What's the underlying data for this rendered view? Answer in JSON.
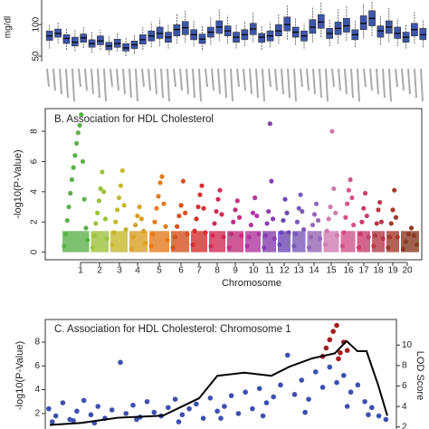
{
  "chart_data": [
    {
      "type": "box",
      "y_label": "mg/dl",
      "color": "#3f56a8",
      "ylim": [
        41.4,
        139
      ],
      "yticks": [
        50,
        100
      ],
      "boxes": [
        [
          62,
          75,
          82,
          90,
          100
        ],
        [
          70,
          80,
          86,
          93,
          104
        ],
        [
          60,
          70,
          78,
          84,
          95
        ],
        [
          58,
          66,
          72,
          80,
          92
        ],
        [
          63,
          72,
          79,
          85,
          96
        ],
        [
          55,
          64,
          70,
          76,
          88
        ],
        [
          60,
          68,
          74,
          82,
          92
        ],
        [
          52,
          60,
          66,
          72,
          83
        ],
        [
          57,
          64,
          70,
          77,
          88
        ],
        [
          50,
          58,
          63,
          70,
          80
        ],
        [
          54,
          62,
          68,
          74,
          85
        ],
        [
          60,
          69,
          76,
          84,
          96
        ],
        [
          64,
          74,
          82,
          90,
          104
        ],
        [
          66,
          78,
          86,
          96,
          110
        ],
        [
          62,
          72,
          80,
          88,
          100
        ],
        [
          70,
          82,
          92,
          100,
          118
        ],
        [
          72,
          84,
          95,
          105,
          122
        ],
        [
          65,
          76,
          84,
          92,
          106
        ],
        [
          60,
          70,
          77,
          85,
          98
        ],
        [
          68,
          80,
          88,
          96,
          112
        ],
        [
          74,
          86,
          96,
          106,
          124
        ],
        [
          70,
          82,
          90,
          98,
          114
        ],
        [
          62,
          72,
          80,
          88,
          100
        ],
        [
          66,
          76,
          84,
          92,
          106
        ],
        [
          72,
          84,
          93,
          102,
          120
        ],
        [
          60,
          72,
          80,
          86,
          98
        ],
        [
          64,
          74,
          82,
          90,
          104
        ],
        [
          70,
          82,
          90,
          100,
          116
        ],
        [
          76,
          90,
          100,
          112,
          132
        ],
        [
          68,
          80,
          88,
          96,
          110
        ],
        [
          62,
          74,
          82,
          90,
          102
        ],
        [
          72,
          86,
          96,
          108,
          128
        ],
        [
          80,
          94,
          104,
          116,
          136
        ],
        [
          66,
          78,
          86,
          94,
          108
        ],
        [
          70,
          84,
          94,
          104,
          124
        ],
        [
          74,
          88,
          98,
          110,
          130
        ],
        [
          64,
          76,
          84,
          92,
          106
        ],
        [
          78,
          92,
          102,
          114,
          134
        ],
        [
          82,
          98,
          110,
          122,
          138
        ],
        [
          68,
          80,
          90,
          98,
          114
        ],
        [
          72,
          86,
          96,
          106,
          126
        ],
        [
          66,
          78,
          86,
          96,
          110
        ],
        [
          62,
          72,
          80,
          88,
          100
        ],
        [
          70,
          82,
          92,
          102,
          120
        ],
        [
          64,
          76,
          84,
          94,
          108
        ]
      ]
    },
    {
      "type": "manhattan",
      "title": "B. Association for HDL Cholesterol",
      "x_label": "Chromosome",
      "y_label": "-log10(P-Value)",
      "ylim": [
        -0.5,
        9.5
      ],
      "yticks": [
        0,
        2,
        4,
        6,
        8
      ],
      "categories": [
        "1",
        "2",
        "3",
        "4",
        "5",
        "6",
        "7",
        "8",
        "9",
        "10",
        "11",
        "12",
        "13",
        "14",
        "15",
        "16",
        "17",
        "18",
        "19",
        "20"
      ],
      "colors": [
        "#5cb04a",
        "#9cc23a",
        "#c6b82c",
        "#d9a026",
        "#e37a1f",
        "#d9501f",
        "#d43030",
        "#cf2d55",
        "#c0307d",
        "#b0369f",
        "#8a3fb0",
        "#6e48b5",
        "#7b5ab8",
        "#9467b8",
        "#d07cb0",
        "#d2538a",
        "#c93d6e",
        "#b63a4a",
        "#a33a2e",
        "#8b3a22"
      ],
      "values": [
        [
          0.4,
          1.2,
          2.1,
          3.0,
          3.9,
          4.8,
          5.6,
          6.4,
          7.2,
          7.9,
          8.4,
          9.1,
          6.0,
          3.5,
          1.6,
          0.8
        ],
        [
          0.3,
          1.1,
          1.9,
          2.6,
          3.4,
          4.2,
          5.3,
          4.0,
          2.2,
          0.9
        ],
        [
          0.5,
          1.3,
          2.0,
          2.8,
          3.6,
          4.4,
          5.4,
          3.1,
          1.5
        ],
        [
          0.2,
          1.0,
          1.8,
          2.4,
          3.0,
          2.2,
          1.4,
          0.6
        ],
        [
          0.4,
          1.2,
          2.0,
          2.9,
          3.7,
          4.6,
          5.0,
          3.2,
          1.7,
          0.8
        ],
        [
          0.3,
          1.0,
          1.7,
          2.4,
          3.1,
          4.7,
          2.6,
          1.2
        ],
        [
          0.5,
          1.4,
          2.2,
          3.0,
          3.8,
          4.4,
          2.9,
          1.3
        ],
        [
          0.4,
          1.1,
          1.9,
          2.7,
          3.5,
          4.1,
          2.5,
          1.0
        ],
        [
          0.3,
          1.2,
          2.0,
          2.8,
          3.4,
          2.3,
          1.1
        ],
        [
          0.4,
          1.0,
          1.8,
          2.6,
          3.6,
          2.4,
          1.2
        ],
        [
          0.3,
          1.1,
          1.9,
          2.7,
          8.5,
          4.7,
          2.2,
          0.9
        ],
        [
          0.5,
          1.3,
          2.1,
          3.5,
          2.6,
          1.3
        ],
        [
          0.4,
          1.2,
          2.0,
          2.9,
          3.8,
          2.7,
          1.5
        ],
        [
          0.3,
          1.0,
          1.8,
          2.5,
          3.2,
          2.1,
          0.9
        ],
        [
          0.5,
          1.4,
          2.2,
          3.0,
          8.0,
          4.2,
          2.6,
          1.1
        ],
        [
          0.4,
          1.3,
          2.3,
          3.2,
          4.1,
          4.8,
          3.6,
          1.8
        ],
        [
          0.3,
          1.2,
          2.0,
          2.9,
          3.9,
          2.4,
          1.0
        ],
        [
          0.4,
          1.1,
          1.9,
          2.8,
          3.3,
          2.0,
          0.9
        ],
        [
          0.3,
          1.0,
          1.9,
          2.8,
          4.1,
          2.3,
          1.0
        ],
        [
          0.2,
          0.7,
          1.2,
          1.6,
          1.1,
          0.5
        ]
      ]
    },
    {
      "type": "scatter",
      "title": "C. Association for HDL Cholesterol: Chromosome 1",
      "y_label": "-log10(P-Value)",
      "y2_label": "LOD Score",
      "xlim": [
        0,
        100
      ],
      "ylim": [
        0.7,
        9.9
      ],
      "yticks": [
        2,
        4,
        6,
        8
      ],
      "y2lim": [
        1.8,
        12.5
      ],
      "y2ticks": [
        2,
        4,
        6,
        8,
        10
      ],
      "series": [
        {
          "color": "#3d4fb0",
          "x": [
            1,
            3,
            5,
            7,
            9,
            11,
            13,
            15,
            17,
            19,
            21.4,
            23,
            25,
            27,
            29,
            31,
            33,
            35,
            37,
            39,
            41,
            43,
            45,
            47,
            49,
            51,
            53,
            55,
            57,
            59,
            61,
            63,
            65,
            67,
            69,
            71,
            73,
            75,
            77,
            79,
            81,
            83,
            85,
            87,
            89,
            91,
            93,
            95,
            97,
            2,
            8,
            14,
            26,
            38,
            50,
            62,
            74,
            86,
            92
          ],
          "values": [
            2.4,
            1.8,
            2.9,
            1.5,
            2.2,
            3.1,
            1.9,
            2.6,
            1.6,
            2.3,
            6.3,
            2.0,
            2.7,
            1.7,
            3.0,
            2.1,
            1.8,
            2.5,
            3.2,
            1.9,
            2.4,
            2.8,
            1.6,
            3.3,
            2.2,
            2.6,
            3.5,
            2.0,
            3.8,
            2.4,
            4.1,
            2.9,
            3.4,
            4.4,
            6.9,
            3.6,
            4.8,
            3.2,
            5.5,
            4.2,
            5.9,
            4.6,
            5.2,
            3.8,
            4.4,
            3.0,
            2.5,
            1.8,
            1.5,
            1.3,
            1.4,
            1.2,
            1.5,
            1.3,
            1.6,
            1.8,
            2.1,
            2.6,
            1.9
          ]
        },
        {
          "color": "#a51c1c",
          "x": [
            79,
            80,
            81,
            82,
            83,
            83.5,
            84,
            85,
            86
          ],
          "values": [
            6.8,
            7.5,
            8.2,
            8.9,
            9.4,
            6.6,
            7.1,
            8.0,
            7.3
          ]
        },
        {
          "type": "line",
          "axis": "y2",
          "color": "#000000",
          "x": [
            1.3,
            10.3,
            20.6,
            33.5,
            43.8,
            49,
            56.7,
            64.4,
            69.6,
            76,
            82.5,
            85.8,
            88.9,
            91.5,
            94.8,
            97.4
          ],
          "values": [
            2.2,
            2.4,
            2.9,
            3.1,
            4.8,
            7.0,
            7.3,
            7.0,
            7.9,
            8.7,
            9.2,
            10.4,
            9.4,
            9.4,
            6.1,
            3.1
          ]
        }
      ]
    }
  ]
}
